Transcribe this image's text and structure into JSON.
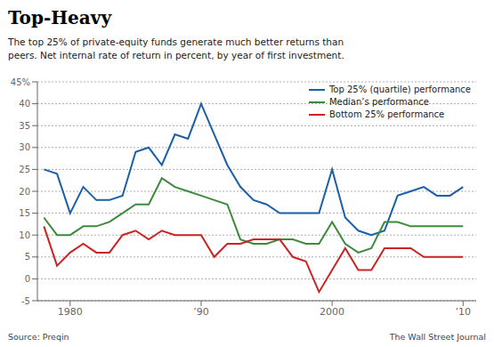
{
  "chart_data": {
    "type": "line",
    "title": "Top-Heavy",
    "subtitle": "The top 25% of private-equity funds generate much better returns than\npeers. Net internal rate of return in percent, by year of first investment.",
    "annotations": [
      "Source: Preqin",
      "The Wall Street Journal"
    ],
    "x": [
      1978,
      1979,
      1980,
      1981,
      1982,
      1983,
      1984,
      1985,
      1986,
      1987,
      1988,
      1989,
      1990,
      1991,
      1992,
      1993,
      1994,
      1995,
      1996,
      1997,
      1998,
      1999,
      2000,
      2001,
      2002,
      2003,
      2004,
      2005,
      2006,
      2007,
      2008,
      2009,
      2010
    ],
    "series": [
      {
        "name": "Top 25% (quartile) performance",
        "color": "#1a5fa8",
        "values": [
          25,
          24,
          15,
          21,
          18,
          18,
          19,
          29,
          30,
          26,
          33,
          32,
          40,
          33,
          26,
          21,
          18,
          17,
          15,
          15,
          15,
          15,
          25,
          14,
          11,
          10,
          11,
          19,
          20,
          21,
          19,
          19,
          21
        ]
      },
      {
        "name": "Median’s performance",
        "color": "#3d8a3d",
        "values": [
          14,
          10,
          10,
          12,
          12,
          13,
          15,
          17,
          17,
          23,
          21,
          20,
          19,
          18,
          17,
          9,
          8,
          8,
          9,
          9,
          8,
          8,
          13,
          8,
          6,
          7,
          13,
          13,
          12,
          12,
          12,
          12,
          12
        ]
      },
      {
        "name": "Bottom 25% performance",
        "color": "#cc2222",
        "values": [
          12,
          3,
          6,
          8,
          6,
          6,
          10,
          11,
          9,
          11,
          10,
          10,
          10,
          5,
          8,
          8,
          9,
          9,
          9,
          5,
          4,
          -3,
          2,
          7,
          2,
          2,
          7,
          7,
          7,
          5,
          5,
          5,
          5
        ]
      }
    ],
    "xlim": [
      1977.5,
      2011
    ],
    "xticks": [
      1980,
      {
        "value": 1990,
        "label": "’90"
      },
      2000,
      {
        "value": 2010,
        "label": "’10"
      }
    ],
    "ylim": [
      -5,
      45
    ],
    "yticks": [
      -5,
      0,
      5,
      10,
      15,
      20,
      25,
      30,
      35,
      40,
      {
        "value": 45,
        "label": "45%"
      }
    ],
    "grid": true,
    "legend": "upper right"
  }
}
